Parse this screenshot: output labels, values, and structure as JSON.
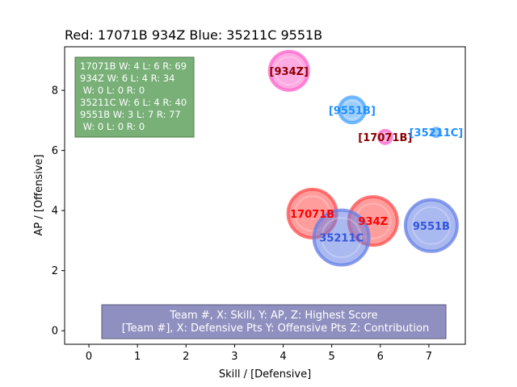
{
  "chart_data": {
    "type": "scatter",
    "title": "Red: 17071B 934Z  Blue: 35211C 9551B",
    "xlabel": "Skill / [Defensive]",
    "ylabel": "AP / [Offensive]",
    "xlim": [
      -0.5,
      7.75
    ],
    "ylim": [
      -0.45,
      9.45
    ],
    "xticks": [
      0,
      1,
      2,
      3,
      4,
      5,
      6,
      7
    ],
    "yticks": [
      0,
      2,
      4,
      6,
      8
    ],
    "grid": false,
    "stats_box": [
      "17071B W: 4 L: 6 R: 69",
      "934Z W: 6 L: 4 R: 34",
      " W: 0 L: 0 R: 0",
      "35211C W: 6 L: 4 R: 40",
      "9551B W: 3 L: 7 R: 77",
      " W: 0 L: 0 R: 0"
    ],
    "caption": [
      "Team #, X: Skill, Y: AP, Z: Highest Score",
      "[Team #], X: Defensive Pts Y: Offensive Pts Z: Contribution"
    ],
    "colors": {
      "red_fill": "#ff4d4d",
      "pink_fill": "#ff66cc",
      "blue_fill": "#6680e6",
      "light_blue_fill": "#4da6ff",
      "red_label": "#ff0000",
      "dark_red_label": "#8b0000",
      "blue_label": "#3355dd",
      "light_blue_label": "#1e90ff",
      "stats_box_bg": "#78b078",
      "caption_box_bg": "#9090c0"
    },
    "series": [
      {
        "label": "17071B",
        "x": 4.6,
        "y": 3.9,
        "z": 30,
        "fill": "#ff4d4d",
        "label_color": "#ff0000"
      },
      {
        "label": "934Z",
        "x": 5.85,
        "y": 3.65,
        "z": 30,
        "fill": "#ff4d4d",
        "label_color": "#ff0000"
      },
      {
        "label": "35211C",
        "x": 5.2,
        "y": 3.1,
        "z": 34,
        "fill": "#6680e6",
        "label_color": "#3355dd"
      },
      {
        "label": "9551B",
        "x": 7.05,
        "y": 3.5,
        "z": 32,
        "fill": "#6680e6",
        "label_color": "#3355dd"
      },
      {
        "label": "[934Z]",
        "x": 4.12,
        "y": 8.65,
        "z": 24,
        "fill": "#ff66cc",
        "label_color": "#8b0000"
      },
      {
        "label": "[17071B]",
        "x": 6.1,
        "y": 6.45,
        "z": 8,
        "fill": "#ff66cc",
        "label_color": "#8b0000"
      },
      {
        "label": "[9551B]",
        "x": 5.42,
        "y": 7.35,
        "z": 16,
        "fill": "#4da6ff",
        "label_color": "#1e90ff"
      },
      {
        "label": "[35211C]",
        "x": 7.15,
        "y": 6.6,
        "z": 5,
        "fill": "#4da6ff",
        "label_color": "#1e90ff"
      }
    ]
  }
}
